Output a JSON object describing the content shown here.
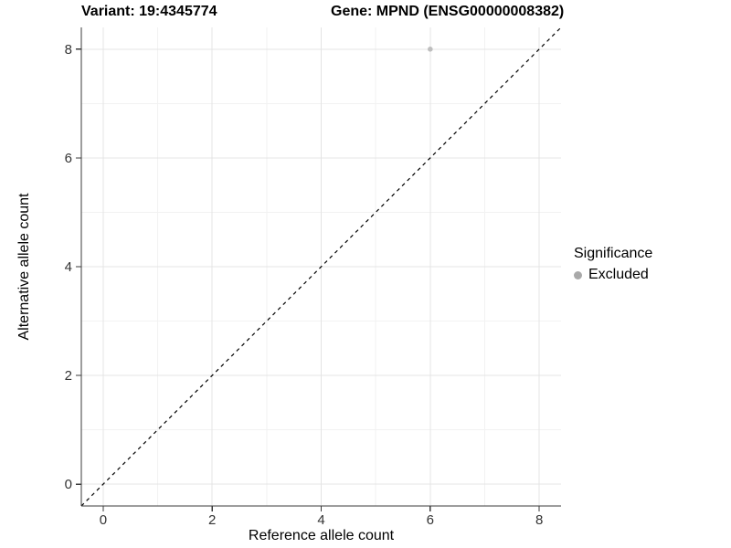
{
  "header": {
    "variant_title": "Variant: 19:4345774",
    "gene_title": "Gene: MPND (ENSG00000008382)"
  },
  "chart_data": {
    "type": "scatter",
    "title_left": "Variant: 19:4345774",
    "title_right": "Gene: MPND (ENSG00000008382)",
    "xlabel": "Reference allele count",
    "ylabel": "Alternative allele count",
    "xlim": [
      -0.4,
      8.4
    ],
    "ylim": [
      -0.4,
      8.4
    ],
    "xticks": [
      0,
      2,
      4,
      6,
      8
    ],
    "yticks": [
      0,
      2,
      4,
      6,
      8
    ],
    "xminor": [
      1,
      3,
      5,
      7
    ],
    "yminor": [
      1,
      3,
      5,
      7
    ],
    "grid": "major and minor gridlines on white background",
    "reference_line": {
      "description": "identity line y = x",
      "from": [
        -0.4,
        -0.4
      ],
      "to": [
        8.4,
        8.4
      ],
      "style": "dashed",
      "color": "#000000"
    },
    "series": [
      {
        "name": "Excluded",
        "color": "#BEBEBE",
        "point_radius": 2.8,
        "points": [
          [
            6,
            8
          ]
        ]
      }
    ],
    "legend": {
      "title": "Significance",
      "position": "right",
      "items": [
        {
          "label": "Excluded",
          "color": "#A9A9A9"
        }
      ]
    }
  },
  "colors": {
    "background": "#FFFFFF",
    "grid_major": "#E4E4E4",
    "grid_minor": "#F2F2F2",
    "axis_line": "#3B3B3B",
    "tick_mark": "#3B3B3B",
    "tick_label": "#333333",
    "title_text": "#000000"
  }
}
